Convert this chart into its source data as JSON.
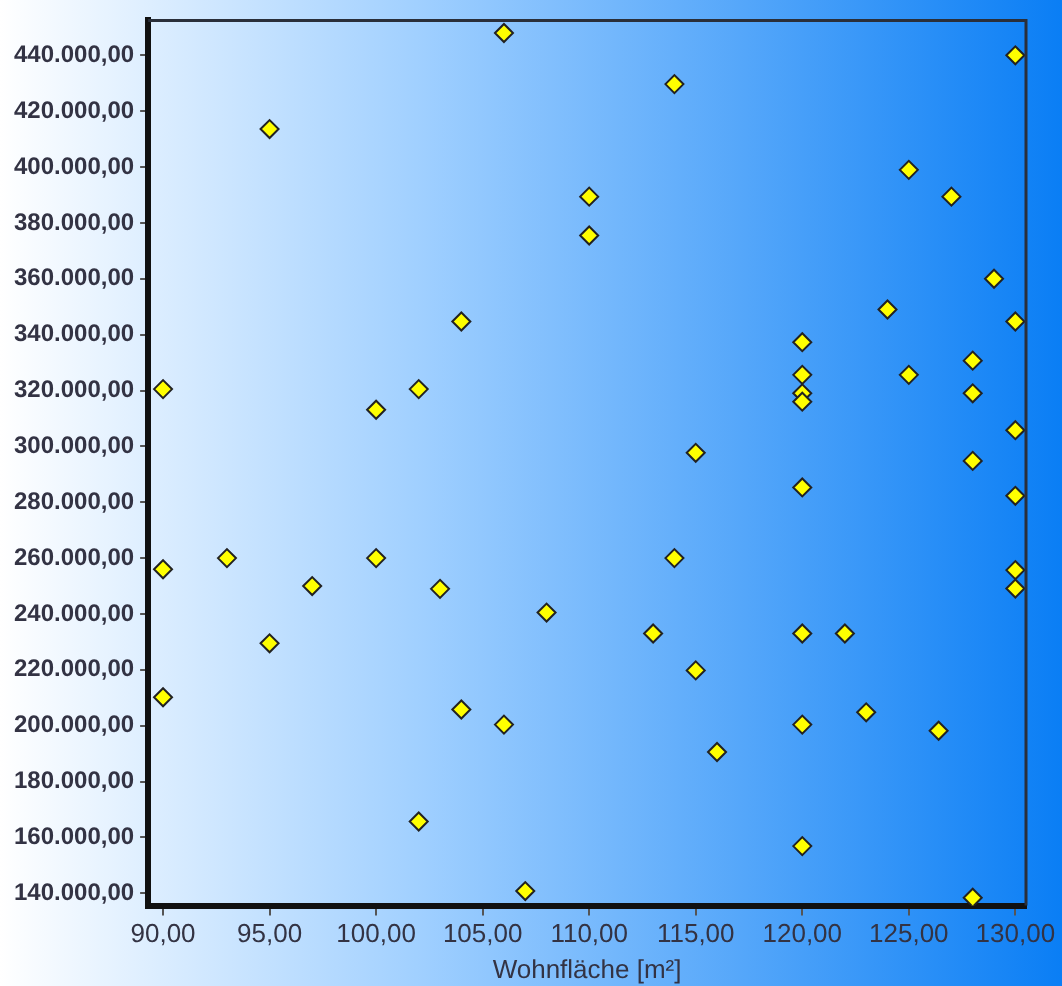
{
  "chart_data": {
    "type": "scatter",
    "xlabel": "Wohnfläche [m²]",
    "x": [
      106,
      95,
      110,
      110,
      104,
      90,
      100,
      102,
      114,
      130,
      125,
      127,
      129,
      130,
      124,
      120,
      120,
      120,
      120,
      125,
      128,
      128,
      115,
      130,
      128,
      120,
      130,
      90,
      93,
      95,
      97,
      100,
      103,
      108,
      90,
      104,
      106,
      102,
      107,
      114,
      130,
      130,
      113,
      120,
      122,
      115,
      123,
      120,
      126.4,
      116,
      120,
      128
    ],
    "values": [
      448000,
      413600,
      389400,
      375500,
      344700,
      320500,
      313100,
      320500,
      429700,
      440000,
      399000,
      389400,
      360000,
      344700,
      349000,
      337300,
      325600,
      319000,
      316000,
      325600,
      330700,
      319000,
      297700,
      305800,
      294800,
      285300,
      282300,
      256000,
      260000,
      229500,
      250000,
      260000,
      249000,
      240500,
      210200,
      205800,
      200400,
      165700,
      140800,
      260000,
      255700,
      249100,
      233000,
      233000,
      233000,
      219800,
      204800,
      200400,
      198200,
      190600,
      156900,
      138400
    ],
    "color": "#ffff00",
    "marker": "diamond",
    "grid": false,
    "legend": false,
    "xlim": [
      89.3,
      130.5
    ],
    "ylim": [
      135600,
      452500
    ],
    "xticks": [
      {
        "value": 90,
        "label": "90,00"
      },
      {
        "value": 95,
        "label": "95,00"
      },
      {
        "value": 100,
        "label": "100,00"
      },
      {
        "value": 105,
        "label": "105,00"
      },
      {
        "value": 110,
        "label": "110,00"
      },
      {
        "value": 115,
        "label": "115,00"
      },
      {
        "value": 120,
        "label": "120,00"
      },
      {
        "value": 125,
        "label": "125,00"
      },
      {
        "value": 130,
        "label": "130,00"
      }
    ],
    "yticks": [
      {
        "value": 140000,
        "label": "140.000,00"
      },
      {
        "value": 160000,
        "label": "160.000,00"
      },
      {
        "value": 180000,
        "label": "180.000,00"
      },
      {
        "value": 200000,
        "label": "200.000,00"
      },
      {
        "value": 220000,
        "label": "220.000,00"
      },
      {
        "value": 240000,
        "label": "240.000,00"
      },
      {
        "value": 260000,
        "label": "260.000,00"
      },
      {
        "value": 280000,
        "label": "280.000,00"
      },
      {
        "value": 300000,
        "label": "300.000,00"
      },
      {
        "value": 320000,
        "label": "320.000,00"
      },
      {
        "value": 340000,
        "label": "340.000,00"
      },
      {
        "value": 360000,
        "label": "360.000,00"
      },
      {
        "value": 380000,
        "label": "380.000,00"
      },
      {
        "value": 400000,
        "label": "400.000,00"
      },
      {
        "value": 420000,
        "label": "420.000,00"
      },
      {
        "value": 440000,
        "label": "440.000,00"
      }
    ]
  }
}
